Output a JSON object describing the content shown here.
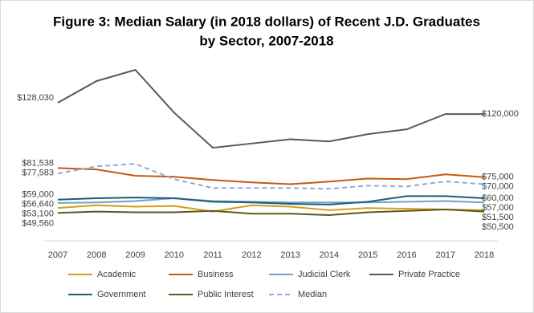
{
  "chart_data": {
    "type": "line",
    "title": [
      "Figure 3: Median Salary (in 2018 dollars) of Recent J.D. Graduates",
      "by Sector, 2007-2018"
    ],
    "categories": [
      "2007",
      "2008",
      "2009",
      "2010",
      "2011",
      "2012",
      "2013",
      "2014",
      "2015",
      "2016",
      "2017",
      "2018"
    ],
    "series": [
      {
        "name": "Academic",
        "color": "#d69b21",
        "values": [
          53100,
          55000,
          54000,
          54500,
          50500,
          55000,
          54000,
          51500,
          53000,
          52500,
          52000,
          51500
        ],
        "value_labels": [
          "$53,100",
          null,
          null,
          null,
          null,
          null,
          null,
          null,
          null,
          null,
          null,
          "$51,500"
        ]
      },
      {
        "name": "Business",
        "color": "#c55a11",
        "values": [
          81538,
          80500,
          76000,
          75300,
          73000,
          71300,
          70000,
          71900,
          74000,
          73600,
          77000,
          75000
        ],
        "value_labels": [
          "$81,538",
          null,
          null,
          null,
          null,
          null,
          null,
          null,
          null,
          null,
          null,
          "$75,000"
        ]
      },
      {
        "name": "Judicial Clerk",
        "color": "#6fa0cc",
        "values": [
          56640,
          57000,
          58000,
          60000,
          58000,
          57500,
          57000,
          57000,
          57000,
          57500,
          58000,
          57000
        ],
        "value_labels": [
          "$56,640",
          null,
          null,
          null,
          null,
          null,
          null,
          null,
          null,
          null,
          null,
          "$57,000"
        ]
      },
      {
        "name": "Private Practice",
        "color": "#595959",
        "values": [
          128030,
          143500,
          151500,
          121000,
          96000,
          99000,
          102000,
          100500,
          105700,
          109100,
          120000,
          120000
        ],
        "value_labels": [
          "$128,030",
          null,
          null,
          null,
          null,
          null,
          null,
          null,
          null,
          null,
          null,
          "$120,000"
        ]
      },
      {
        "name": "Government",
        "color": "#1f5f70",
        "values": [
          59000,
          60000,
          60500,
          60000,
          57500,
          57000,
          56000,
          55500,
          57500,
          61500,
          61500,
          60000
        ],
        "value_labels": [
          "$59,000",
          null,
          null,
          null,
          null,
          null,
          null,
          null,
          null,
          null,
          null,
          "$60,000"
        ]
      },
      {
        "name": "Public Interest",
        "color": "#5a5a1a",
        "values": [
          49560,
          50500,
          50000,
          50000,
          51000,
          49000,
          49000,
          48000,
          50000,
          51000,
          52000,
          50500
        ],
        "value_labels": [
          "$49,560",
          null,
          null,
          null,
          null,
          null,
          null,
          null,
          null,
          null,
          null,
          "$50,500"
        ]
      },
      {
        "name": "Median",
        "color": "#8eaadb",
        "dashed": true,
        "values": [
          77583,
          82800,
          84500,
          73600,
          67300,
          67300,
          67300,
          66700,
          69000,
          68400,
          72000,
          70000
        ],
        "value_labels": [
          "$77,583",
          null,
          null,
          null,
          null,
          null,
          null,
          null,
          null,
          null,
          null,
          "$70,000"
        ]
      }
    ]
  }
}
